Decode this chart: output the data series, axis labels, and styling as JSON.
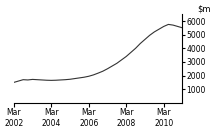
{
  "ylim": [
    0,
    6500
  ],
  "yticks": [
    1000,
    2000,
    3000,
    4000,
    5000,
    6000
  ],
  "xtick_labels": [
    "Mar\n2002",
    "Mar\n2004",
    "Mar\n2006",
    "Mar\n2008",
    "Mar\n2010"
  ],
  "xtick_positions": [
    0,
    8,
    16,
    24,
    32
  ],
  "line_color": "#333333",
  "background_color": "#ffffff",
  "x": [
    0,
    1,
    2,
    3,
    4,
    5,
    6,
    7,
    8,
    9,
    10,
    11,
    12,
    13,
    14,
    15,
    16,
    17,
    18,
    19,
    20,
    21,
    22,
    23,
    24,
    25,
    26,
    27,
    28,
    29,
    30,
    31,
    32,
    33,
    34,
    35,
    36
  ],
  "y": [
    1500,
    1600,
    1700,
    1680,
    1720,
    1700,
    1680,
    1660,
    1650,
    1660,
    1680,
    1700,
    1730,
    1780,
    1830,
    1880,
    1950,
    2050,
    2180,
    2320,
    2500,
    2700,
    2900,
    3150,
    3400,
    3700,
    4000,
    4350,
    4650,
    4950,
    5200,
    5400,
    5600,
    5750,
    5700,
    5600,
    5500
  ]
}
